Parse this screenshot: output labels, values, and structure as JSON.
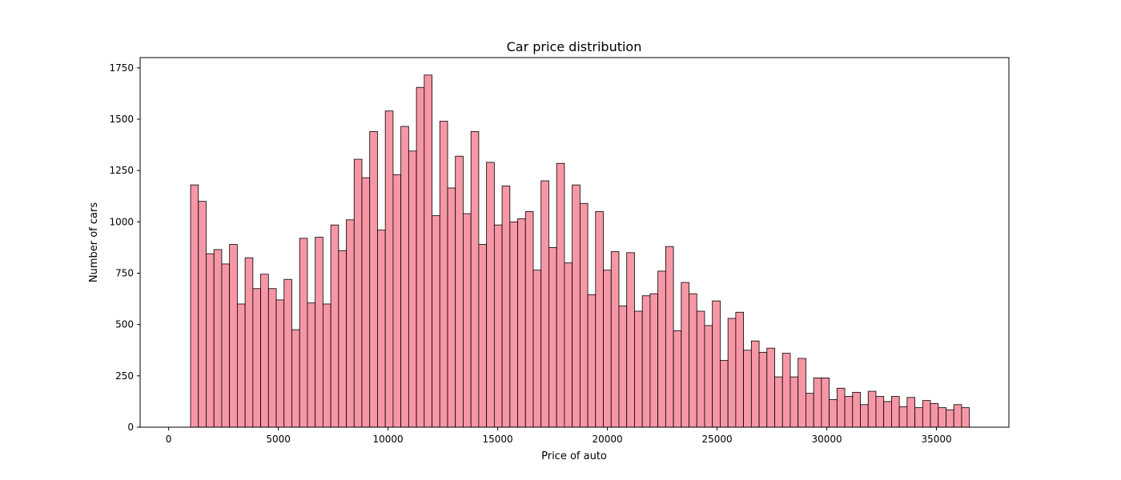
{
  "chart_data": {
    "type": "bar",
    "title": "Car price distribution",
    "xlabel": "Price of auto",
    "ylabel": "Number of cars",
    "bin_width": 355,
    "x_start": 1000,
    "xlim": [
      -1300,
      38300
    ],
    "ylim": [
      0,
      1800
    ],
    "x_ticks": [
      0,
      5000,
      10000,
      15000,
      20000,
      25000,
      30000,
      35000
    ],
    "y_ticks": [
      0,
      250,
      500,
      750,
      1000,
      1250,
      1500,
      1750
    ],
    "bar_color": "#f797a6",
    "edge_color": "#000000",
    "grid": false,
    "values": [
      1180,
      1100,
      845,
      865,
      795,
      890,
      600,
      825,
      675,
      745,
      675,
      620,
      720,
      475,
      920,
      605,
      925,
      600,
      985,
      860,
      1010,
      1305,
      1215,
      1440,
      960,
      1540,
      1230,
      1465,
      1345,
      1655,
      1715,
      1030,
      1490,
      1165,
      1320,
      1040,
      1440,
      890,
      1290,
      985,
      1175,
      1000,
      1015,
      1050,
      765,
      1200,
      875,
      1285,
      800,
      1180,
      1090,
      645,
      1050,
      765,
      855,
      590,
      850,
      565,
      640,
      650,
      760,
      880,
      470,
      705,
      650,
      565,
      495,
      615,
      325,
      530,
      560,
      375,
      420,
      365,
      385,
      245,
      360,
      245,
      335,
      165,
      240,
      240,
      135,
      190,
      150,
      170,
      110,
      175,
      150,
      125,
      150,
      100,
      145,
      95,
      130,
      115,
      95,
      85,
      110,
      95
    ]
  }
}
